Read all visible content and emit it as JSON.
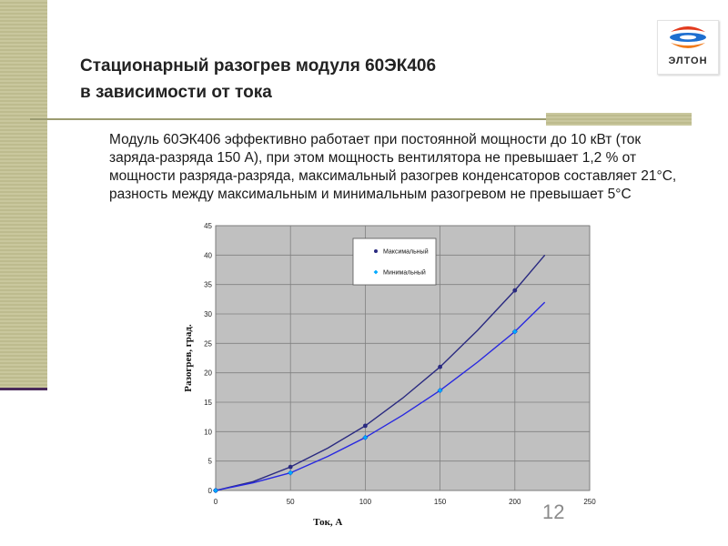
{
  "slide": {
    "title_line1": "Стационарный разогрев  модуля 60ЭК406",
    "title_line2": "в зависимости от тока",
    "body": "Модуль 60ЭК406 эффективно работает при постоянной мощности до 10 кВт (ток заряда-разряда 150 А), при этом мощность вентилятора не превышает 1,2 % от мощности разряда-разряда, максимальный разогрев конденсаторов составляет 21°С, разность между максимальным и минимальным разогревом не превышает 5°С",
    "page_number": "12",
    "logo_text": "ЭЛТОН"
  },
  "colors": {
    "plot_background": "#c0c0c0",
    "gridline": "#808080",
    "series_max": "#2a2a80",
    "series_min": "#2828e0",
    "marker_min": "#00aaff",
    "decor": "#c9c79d"
  },
  "chart_data": {
    "type": "line",
    "title": "",
    "xlabel": "Ток, А",
    "ylabel": "Разогрев, град.",
    "xlim": [
      0,
      250
    ],
    "ylim": [
      0,
      45
    ],
    "x_ticks": [
      "0",
      "50",
      "100",
      "150",
      "200",
      "250"
    ],
    "y_ticks": [
      "0",
      "5",
      "10",
      "15",
      "20",
      "25",
      "30",
      "35",
      "40",
      "45"
    ],
    "grid": true,
    "legend_position": "top-center",
    "series": [
      {
        "name": "Максимальный",
        "points": [
          [
            0,
            0
          ],
          [
            50,
            4
          ],
          [
            100,
            11
          ],
          [
            150,
            21
          ],
          [
            200,
            34
          ]
        ],
        "trend": [
          [
            0,
            0
          ],
          [
            25,
            1.5
          ],
          [
            50,
            4
          ],
          [
            75,
            7.2
          ],
          [
            100,
            11
          ],
          [
            125,
            15.7
          ],
          [
            150,
            21
          ],
          [
            175,
            27.2
          ],
          [
            200,
            34
          ],
          [
            220,
            40
          ]
        ]
      },
      {
        "name": "Минимальный",
        "points": [
          [
            0,
            0
          ],
          [
            50,
            3
          ],
          [
            100,
            9
          ],
          [
            150,
            17
          ],
          [
            200,
            27
          ]
        ],
        "trend": [
          [
            0,
            0
          ],
          [
            25,
            1.3
          ],
          [
            50,
            3
          ],
          [
            75,
            5.8
          ],
          [
            100,
            9
          ],
          [
            125,
            12.8
          ],
          [
            150,
            17
          ],
          [
            175,
            21.8
          ],
          [
            200,
            27
          ],
          [
            220,
            32
          ]
        ]
      }
    ]
  }
}
